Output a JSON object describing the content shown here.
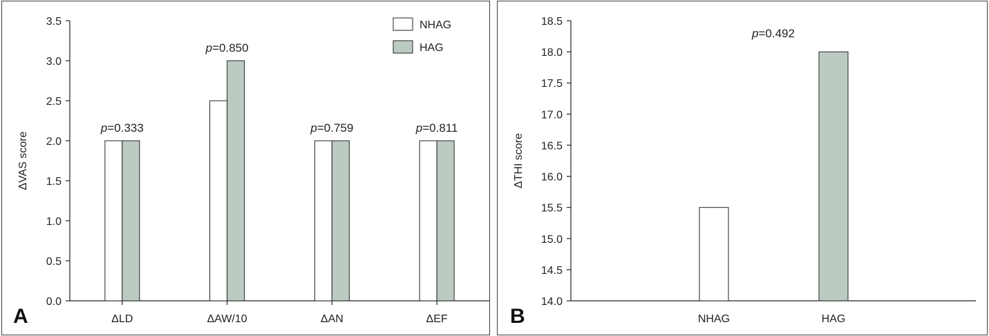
{
  "colors": {
    "nhag": "#ffffff",
    "hag": "#bccbc2",
    "stroke": "#222222"
  },
  "chart_data": [
    {
      "panel_label": "A",
      "type": "bar",
      "ylabel": "ΔVAS score",
      "ylim": [
        0,
        3.5
      ],
      "yticks": [
        "0.0",
        "0.5",
        "1.0",
        "1.5",
        "2.0",
        "2.5",
        "3.0",
        "3.5"
      ],
      "categories": [
        "ΔLD",
        "ΔAW/10",
        "ΔAN",
        "ΔEF"
      ],
      "series": [
        {
          "name": "NHAG",
          "values": [
            2.0,
            2.5,
            2.0,
            2.0
          ]
        },
        {
          "name": "HAG",
          "values": [
            2.0,
            3.0,
            2.0,
            2.0
          ]
        }
      ],
      "annotations": [
        {
          "prefix": "p",
          "value": "=0.333"
        },
        {
          "prefix": "p",
          "value": "=0.850"
        },
        {
          "prefix": "p",
          "value": "=0.759"
        },
        {
          "prefix": "p",
          "value": "=0.811"
        }
      ],
      "legend": {
        "position": "top-right",
        "entries": [
          "NHAG",
          "HAG"
        ]
      },
      "grid": false
    },
    {
      "panel_label": "B",
      "type": "bar",
      "ylabel": "ΔTHI score",
      "ylim": [
        14.0,
        18.5
      ],
      "yticks": [
        "14.0",
        "14.5",
        "15.0",
        "15.5",
        "16.0",
        "16.5",
        "17.0",
        "17.5",
        "18.0",
        "18.5"
      ],
      "categories": [
        "NHAG",
        "HAG"
      ],
      "values": [
        15.5,
        18.0
      ],
      "annotations": [
        {
          "prefix": "p",
          "value": "=0.492"
        }
      ],
      "grid": false
    }
  ]
}
